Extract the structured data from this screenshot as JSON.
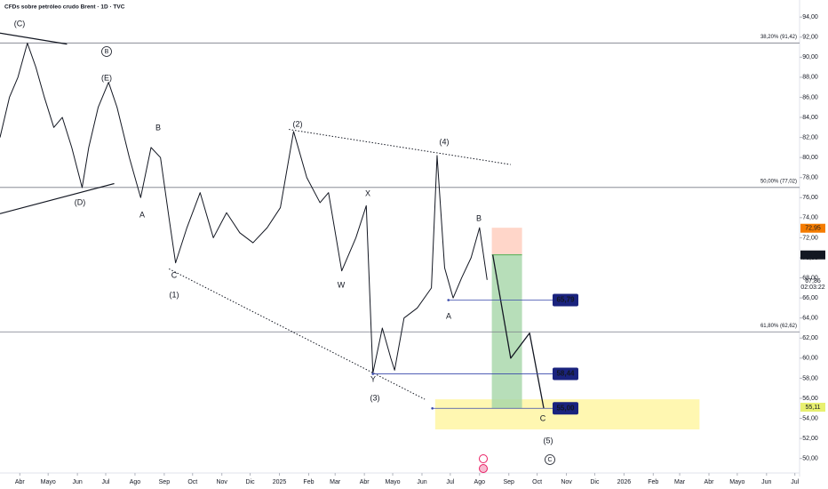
{
  "chart_data": {
    "type": "line",
    "title": "CFDs sobre petróleo crudo Brent · 1D · TVC",
    "xlim": [
      -21,
      826
    ],
    "ylim": [
      48.2,
      95.7
    ],
    "xticks": [
      {
        "value": 0,
        "label": "Abr"
      },
      {
        "value": 30,
        "label": "Mayo"
      },
      {
        "value": 61,
        "label": "Jun"
      },
      {
        "value": 91,
        "label": "Jul"
      },
      {
        "value": 122,
        "label": "Ago"
      },
      {
        "value": 153,
        "label": "Sep"
      },
      {
        "value": 183,
        "label": "Oct"
      },
      {
        "value": 214,
        "label": "Nov"
      },
      {
        "value": 244,
        "label": "Dic"
      },
      {
        "value": 275,
        "label": "2025"
      },
      {
        "value": 306,
        "label": "Feb"
      },
      {
        "value": 334,
        "label": "Mar"
      },
      {
        "value": 365,
        "label": "Abr"
      },
      {
        "value": 395,
        "label": "Mayo"
      },
      {
        "value": 426,
        "label": "Jun"
      },
      {
        "value": 456,
        "label": "Jul"
      },
      {
        "value": 487,
        "label": "Ago"
      },
      {
        "value": 518,
        "label": "Sep"
      },
      {
        "value": 548,
        "label": "Oct"
      },
      {
        "value": 579,
        "label": "Nov"
      },
      {
        "value": 609,
        "label": "Dic"
      },
      {
        "value": 640,
        "label": "2026"
      },
      {
        "value": 671,
        "label": "Feb"
      },
      {
        "value": 699,
        "label": "Mar"
      },
      {
        "value": 730,
        "label": "Abr"
      },
      {
        "value": 760,
        "label": "Mayo"
      },
      {
        "value": 791,
        "label": "Jun"
      },
      {
        "value": 821,
        "label": "Jul"
      }
    ],
    "yticks": [
      {
        "value": 50,
        "label": "50,00"
      },
      {
        "value": 52,
        "label": "52,00"
      },
      {
        "value": 54,
        "label": "54,00"
      },
      {
        "value": 56,
        "label": "56,00"
      },
      {
        "value": 58,
        "label": "58,00"
      },
      {
        "value": 60,
        "label": "60,00"
      },
      {
        "value": 62,
        "label": "62,00"
      },
      {
        "value": 64,
        "label": "64,00"
      },
      {
        "value": 66,
        "label": "66,00"
      },
      {
        "value": 68,
        "label": "68,00"
      },
      {
        "value": 70,
        "label": "70,00"
      },
      {
        "value": 72,
        "label": "72,00"
      },
      {
        "value": 74,
        "label": "74,00"
      },
      {
        "value": 76,
        "label": "76,00"
      },
      {
        "value": 78,
        "label": "78,00"
      },
      {
        "value": 80,
        "label": "80,00"
      },
      {
        "value": 82,
        "label": "82,00"
      },
      {
        "value": 84,
        "label": "84,00"
      },
      {
        "value": 86,
        "label": "86,00"
      },
      {
        "value": 88,
        "label": "88,00"
      },
      {
        "value": 90,
        "label": "90,00"
      },
      {
        "value": 92,
        "label": "92,00"
      },
      {
        "value": 94,
        "label": "94,00"
      }
    ],
    "price": {
      "color": "#131722",
      "x": [
        -21,
        -11,
        -2,
        8,
        17,
        26,
        36,
        45,
        55,
        66,
        73,
        83,
        94,
        103,
        116,
        128,
        139,
        149,
        158,
        165,
        177,
        191,
        205,
        219,
        233,
        247,
        262,
        276,
        290,
        304,
        318,
        327,
        341,
        356,
        367,
        374,
        384,
        393,
        397,
        407,
        421,
        436,
        442,
        450,
        459,
        468,
        478,
        487,
        495
      ],
      "values": [
        82,
        86,
        88,
        91.4,
        89,
        86,
        83,
        84,
        81,
        77,
        81,
        85,
        87.5,
        85,
        80,
        76,
        81,
        80,
        74,
        69.5,
        73,
        76.5,
        72,
        74.5,
        72.5,
        71.5,
        73,
        75,
        82.6,
        78,
        75.5,
        76.5,
        68.7,
        72,
        75.2,
        58.5,
        63,
        60,
        58.8,
        64,
        65,
        67,
        80.2,
        69,
        66,
        68,
        70,
        73,
        67.8
      ]
    },
    "projection": {
      "color": "#131722",
      "x": [
        501,
        520,
        540,
        555
      ],
      "values": [
        70.3,
        60,
        62.5,
        55
      ]
    },
    "fib_levels": [
      {
        "value": 91.42,
        "label": "38,20% (91,42)"
      },
      {
        "value": 77.02,
        "label": "50,00% (77,02)"
      },
      {
        "value": 62.62,
        "label": "61,80% (62,62)"
      }
    ],
    "levels": [
      {
        "value": 65.79,
        "label": "65,79",
        "from": 454
      },
      {
        "value": 58.44,
        "label": "58,44",
        "from": 374
      },
      {
        "value": 55.0,
        "label": "55,00",
        "from": 437
      }
    ],
    "trendlines": [
      {
        "x": [
          285,
          520
        ],
        "values": [
          82.8,
          79.3
        ],
        "dotted": true
      },
      {
        "x": [
          158,
          429
        ],
        "values": [
          68.9,
          55.9
        ],
        "dotted": true
      },
      {
        "x": [
          -21,
          50
        ],
        "values": [
          92.4,
          91.3
        ],
        "dotted": false
      },
      {
        "x": [
          -21,
          100
        ],
        "values": [
          74.4,
          77.4
        ],
        "dotted": false
      }
    ],
    "target_zone": {
      "x": [
        440,
        720
      ],
      "values": [
        52.9,
        55.9
      ],
      "color": "#fff59d"
    },
    "position": {
      "x": [
        500,
        532
      ],
      "entry": 70.3,
      "stop": 73.0,
      "target": 55.0
    },
    "price_tags": [
      {
        "value": 72.95,
        "label": "72,95",
        "color": "#f57c00"
      },
      {
        "value": 70.29,
        "label": "70,29",
        "color": "#131722"
      },
      {
        "value": 55.11,
        "label": "55,11",
        "color": "#e8f070"
      }
    ],
    "countdown": {
      "value": 67.86,
      "label": "67,86",
      "timer": "02:03:22"
    },
    "annotations": [
      "(C)",
      "B",
      "(E)",
      "B",
      "(D)",
      "A",
      "C",
      "(1)",
      "(2)",
      "X",
      "W",
      "Y",
      "(3)",
      "(4)",
      "B",
      "A",
      "C",
      "(5)",
      "C"
    ]
  }
}
